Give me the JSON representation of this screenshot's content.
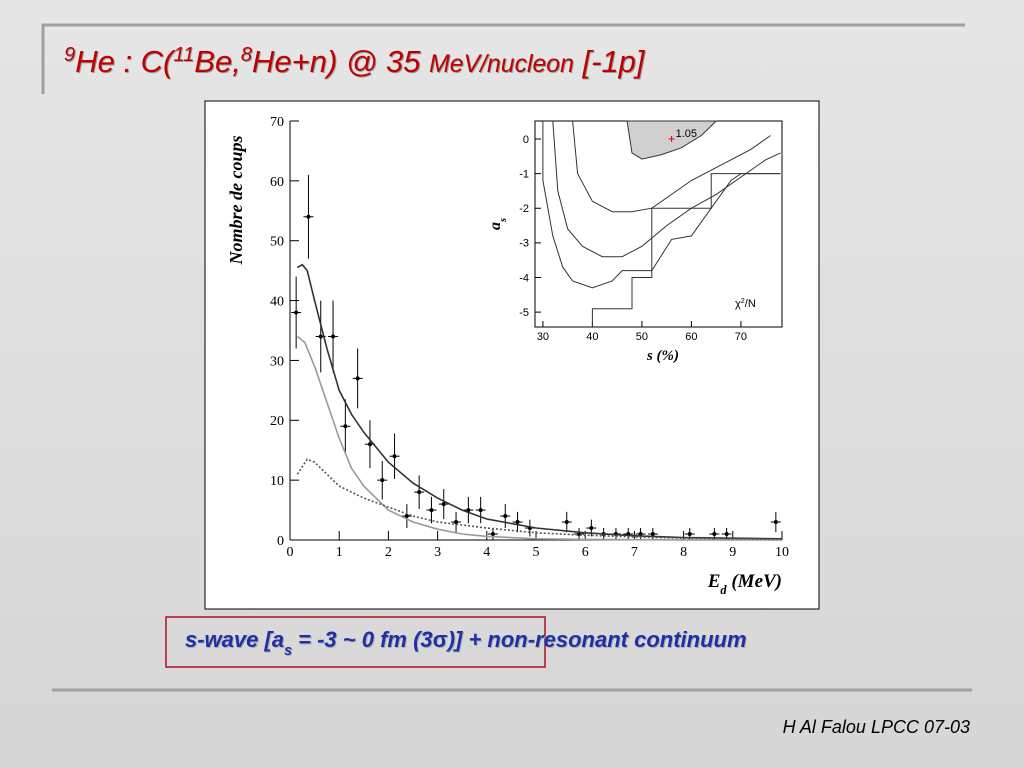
{
  "slide": {
    "title": [
      {
        "text": "9",
        "sup": true
      },
      {
        "text": "He :  C("
      },
      {
        "text": "11",
        "sup": true
      },
      {
        "text": "Be,"
      },
      {
        "text": "8",
        "sup": true
      },
      {
        "text": "He+n) @ 35 "
      },
      {
        "text": "MeV/nucleon",
        "small": true
      },
      {
        "text": "     [-1p]"
      }
    ],
    "caption": [
      {
        "text": "s-wave [a"
      },
      {
        "text": "s",
        "sub": true
      },
      {
        "text": " = -3 ~ 0 fm  (3"
      },
      {
        "text": "σ",
        "symbol": true
      },
      {
        "text": ")] + non-resonant continuum"
      }
    ],
    "footer": "H Al Falou LPCC 07-03"
  },
  "chart_data": [
    {
      "type": "scatter",
      "ylabel": "Nombre de coups",
      "xlabel": [
        {
          "text": "E"
        },
        {
          "text": "d",
          "sub": true
        },
        {
          "text": " (MeV)"
        }
      ],
      "xlim": [
        0,
        10
      ],
      "ylim": [
        0,
        70
      ],
      "xticks": [
        0,
        1,
        2,
        3,
        4,
        5,
        6,
        7,
        8,
        9,
        10
      ],
      "yticks": [
        0,
        10,
        20,
        30,
        40,
        50,
        60,
        70
      ],
      "series": [
        {
          "type": "errorbar",
          "color": "#000000",
          "x": [
            0.125,
            0.375,
            0.625,
            0.875,
            1.125,
            1.375,
            1.625,
            1.875,
            2.125,
            2.375,
            2.625,
            2.875,
            3.125,
            3.375,
            3.625,
            3.875,
            4.125,
            4.375,
            4.625,
            4.875,
            5.625,
            5.875,
            6.125,
            6.375,
            6.625,
            6.875,
            7.125,
            7.375,
            8.125,
            8.625,
            8.875,
            9.875
          ],
          "values": [
            38,
            54,
            34,
            34,
            19,
            27,
            16,
            10,
            14,
            4,
            8,
            5,
            6,
            3,
            5,
            5,
            1,
            4,
            3,
            2,
            3,
            1,
            2,
            1,
            1,
            1,
            1,
            1,
            1,
            1,
            1,
            3
          ],
          "errors": [
            6,
            7,
            6,
            6,
            4.5,
            5,
            4,
            3.2,
            3.8,
            2,
            2.8,
            2.2,
            2.5,
            1.7,
            2.2,
            2.2,
            1,
            2,
            1.7,
            1.4,
            1.7,
            1,
            1.4,
            1,
            1,
            1,
            1,
            1,
            1,
            1,
            1,
            1.7
          ]
        },
        {
          "type": "line",
          "color": "#333333",
          "x": [
            0.15,
            0.25,
            0.35,
            0.5,
            0.75,
            1,
            1.25,
            1.5,
            2,
            2.5,
            3,
            3.5,
            4,
            5,
            6,
            7,
            8,
            9,
            10
          ],
          "values": [
            45.5,
            46,
            45,
            40,
            32,
            25,
            21,
            18,
            13,
            9.5,
            7,
            5,
            3.5,
            2,
            1.2,
            0.7,
            0.4,
            0.3,
            0.2
          ]
        },
        {
          "type": "line",
          "color": "#9a9a9a",
          "x": [
            0.15,
            0.3,
            0.5,
            0.75,
            1,
            1.25,
            1.5,
            2,
            2.5,
            3,
            3.5,
            4,
            5,
            6,
            7,
            8,
            10
          ],
          "values": [
            34,
            33,
            29,
            23,
            17,
            12,
            9,
            5,
            3,
            1.8,
            1,
            0.6,
            0.2,
            0.1,
            0.05,
            0.02,
            0
          ]
        },
        {
          "type": "line",
          "color": "#555555",
          "dash": true,
          "x": [
            0.15,
            0.35,
            0.5,
            0.75,
            1,
            1.5,
            2,
            2.5,
            3,
            4,
            5,
            6,
            7,
            8,
            9,
            10
          ],
          "values": [
            11,
            13.5,
            13,
            11,
            9,
            7,
            5.5,
            4,
            3,
            2,
            1.2,
            0.8,
            0.5,
            0.3,
            0.2,
            0.1
          ]
        }
      ]
    },
    {
      "type": "contour",
      "xlabel": "s (%)",
      "ylabel": [
        {
          "text": "a"
        },
        {
          "text": "s",
          "sub": true
        }
      ],
      "legend_label": [
        {
          "text": "χ"
        },
        {
          "text": "2",
          "sup": true
        },
        {
          "text": "/N"
        }
      ],
      "xlim": [
        28.4,
        78.3
      ],
      "ylim": [
        -5.43,
        0.52
      ],
      "xticks": [
        30,
        40,
        50,
        60,
        70
      ],
      "yticks": [
        0,
        -1,
        -2,
        -3,
        -4,
        -5
      ],
      "best_fit": {
        "x": 56,
        "y": 0,
        "label": "1.05",
        "color": "#e00000"
      },
      "series": [
        {
          "type": "area",
          "color": "#d0d0d0",
          "x": [
            47,
            48,
            50,
            54,
            58,
            62,
            65
          ],
          "values": [
            0.52,
            -0.4,
            -0.58,
            -0.45,
            -0.25,
            0.1,
            0.52
          ]
        },
        {
          "type": "line",
          "color": "#333333",
          "x": [
            36,
            37,
            40,
            44,
            48,
            52,
            56,
            60,
            64,
            68,
            72,
            76
          ],
          "values": [
            0.52,
            -1.0,
            -1.8,
            -2.1,
            -2.1,
            -2.0,
            -1.6,
            -1.2,
            -0.9,
            -0.6,
            -0.3,
            0.1
          ]
        },
        {
          "type": "line",
          "color": "#333333",
          "x": [
            32,
            33,
            35,
            38,
            42,
            46,
            50,
            55,
            60,
            65,
            70,
            75,
            78
          ],
          "values": [
            0.52,
            -1.5,
            -2.6,
            -3.1,
            -3.4,
            -3.4,
            -3.1,
            -2.5,
            -2.0,
            -1.6,
            -1.1,
            -0.6,
            -0.4
          ]
        },
        {
          "type": "line",
          "color": "#333333",
          "x": [
            30,
            30,
            32,
            34,
            36,
            40,
            44,
            46,
            52,
            56,
            60,
            64,
            68,
            70,
            78
          ],
          "values": [
            0.52,
            -1.2,
            -2.8,
            -3.7,
            -4.1,
            -4.3,
            -4.1,
            -3.8,
            -3.8,
            -2.9,
            -2.8,
            -2.0,
            -1.2,
            -1.0,
            -1.0
          ]
        },
        {
          "type": "line",
          "color": "#333333",
          "x": [
            40,
            40,
            48,
            48,
            52,
            52,
            58,
            64,
            64,
            78
          ],
          "values": [
            -5.43,
            -4.9,
            -4.9,
            -4.0,
            -4.0,
            -2.0,
            -2.0,
            -2.0,
            -1.0,
            -1.0
          ]
        }
      ]
    }
  ]
}
